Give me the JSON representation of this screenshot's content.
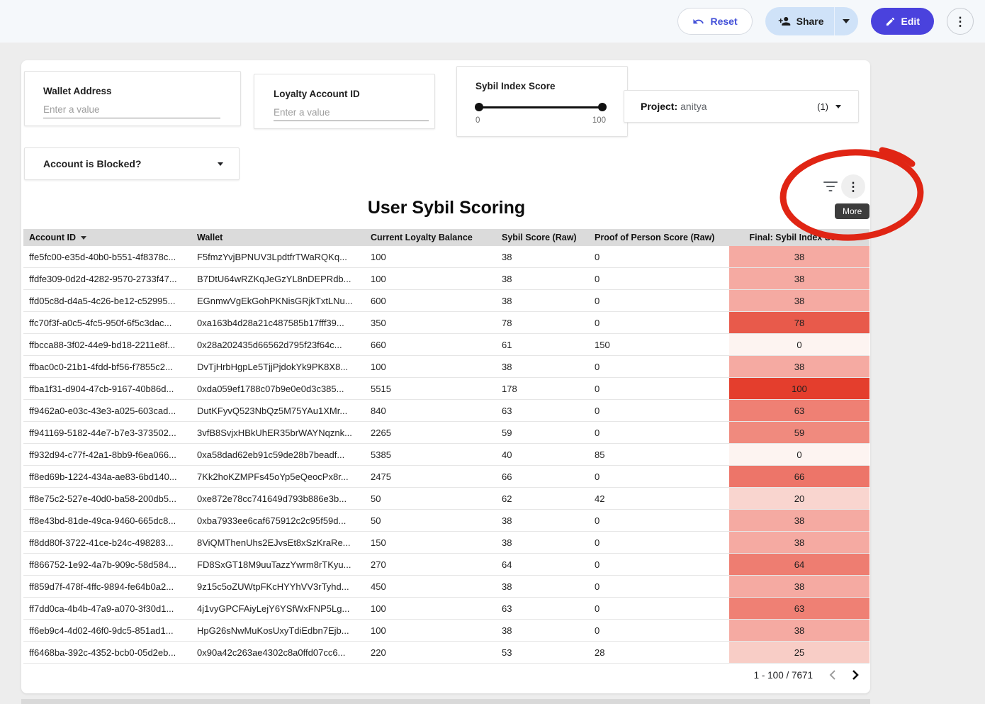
{
  "topbar": {
    "reset_label": "Reset",
    "share_label": "Share",
    "edit_label": "Edit"
  },
  "filters": {
    "wallet": {
      "label": "Wallet Address",
      "placeholder": "Enter a value",
      "value": ""
    },
    "loyalty": {
      "label": "Loyalty Account ID",
      "placeholder": "Enter a value",
      "value": ""
    },
    "sybil_slider": {
      "label": "Sybil Index Score",
      "min_label": "0",
      "max_label": "100",
      "range": [
        0,
        100
      ]
    },
    "project": {
      "label": "Project",
      "value": "anitya",
      "count": "(1)"
    },
    "blocked": {
      "label": "Account is Blocked?"
    }
  },
  "chart_header": {
    "tooltip_more": "More"
  },
  "table": {
    "title": "User Sybil Scoring",
    "columns": [
      "Account ID",
      "Wallet",
      "Current Loyalty Balance",
      "Sybil Score (Raw)",
      "Proof of Person Score (Raw)",
      "Final: Sybil Index Score"
    ],
    "sorted_column": "Account ID",
    "sort_direction": "desc",
    "rows": [
      {
        "account_id": "ffe5fc00-e35d-40b0-b551-4f8378c...",
        "wallet": "F5fmzYvjBPNUV3LpdtfrTWaRQKq...",
        "balance": "100",
        "sybil_raw": "38",
        "pop_raw": "0",
        "final": "38",
        "final_color": "#f5aaa2"
      },
      {
        "account_id": "ffdfe309-0d2d-4282-9570-2733f47...",
        "wallet": "B7DtU64wRZKqJeGzYL8nDEPRdb...",
        "balance": "100",
        "sybil_raw": "38",
        "pop_raw": "0",
        "final": "38",
        "final_color": "#f5aaa2"
      },
      {
        "account_id": "ffd05c8d-d4a5-4c26-be12-c52995...",
        "wallet": "EGnmwVgEkGohPKNisGRjkTxtLNu...",
        "balance": "600",
        "sybil_raw": "38",
        "pop_raw": "0",
        "final": "38",
        "final_color": "#f5aaa2"
      },
      {
        "account_id": "ffc70f3f-a0c5-4fc5-950f-6f5c3dac...",
        "wallet": "0xa163b4d28a21c487585b17fff39...",
        "balance": "350",
        "sybil_raw": "78",
        "pop_raw": "0",
        "final": "78",
        "final_color": "#e85a4b"
      },
      {
        "account_id": "ffbcca88-3f02-44e9-bd18-2211e8f...",
        "wallet": "0x28a202435d66562d795f23f64c...",
        "balance": "660",
        "sybil_raw": "61",
        "pop_raw": "150",
        "final": "0",
        "final_color": "#fdf4f1"
      },
      {
        "account_id": "ffbac0c0-21b1-4fdd-bf56-f7855c2...",
        "wallet": "DvTjHrbHgpLe5TjjPjdokYk9PK8X8...",
        "balance": "100",
        "sybil_raw": "38",
        "pop_raw": "0",
        "final": "38",
        "final_color": "#f5aaa2"
      },
      {
        "account_id": "ffba1f31-d904-47cb-9167-40b86d...",
        "wallet": "0xda059ef1788c07b9e0e0d3c385...",
        "balance": "5515",
        "sybil_raw": "178",
        "pop_raw": "0",
        "final": "100",
        "final_color": "#e43e2d"
      },
      {
        "account_id": "ff9462a0-e03c-43e3-a025-603cad...",
        "wallet": "DutKFyvQ523NbQz5M75YAu1XMr...",
        "balance": "840",
        "sybil_raw": "63",
        "pop_raw": "0",
        "final": "63",
        "final_color": "#ef8074"
      },
      {
        "account_id": "ff941169-5182-44e7-b7e3-373502...",
        "wallet": "3vfB8SvjxHBkUhER35brWAYNqznk...",
        "balance": "2265",
        "sybil_raw": "59",
        "pop_raw": "0",
        "final": "59",
        "final_color": "#f08a7e"
      },
      {
        "account_id": "ff932d94-c77f-42a1-8bb9-f6ea066...",
        "wallet": "0xa58dad62eb91c59de28b7beadf...",
        "balance": "5385",
        "sybil_raw": "40",
        "pop_raw": "85",
        "final": "0",
        "final_color": "#fdf4f1"
      },
      {
        "account_id": "ff8ed69b-1224-434a-ae83-6bd140...",
        "wallet": "7Kk2hoKZMPFs45oYp5eQeocPx8r...",
        "balance": "2475",
        "sybil_raw": "66",
        "pop_raw": "0",
        "final": "66",
        "final_color": "#ed7569"
      },
      {
        "account_id": "ff8e75c2-527e-40d0-ba58-200db5...",
        "wallet": "0xe872e78cc741649d793b886e3b...",
        "balance": "50",
        "sybil_raw": "62",
        "pop_raw": "42",
        "final": "20",
        "final_color": "#f9d5cf"
      },
      {
        "account_id": "ff8e43bd-81de-49ca-9460-665dc8...",
        "wallet": "0xba7933ee6caf675912c2c95f59d...",
        "balance": "50",
        "sybil_raw": "38",
        "pop_raw": "0",
        "final": "38",
        "final_color": "#f5aaa2"
      },
      {
        "account_id": "ff8dd80f-3722-41ce-b24c-498283...",
        "wallet": "8ViQMThenUhs2EJvsEt8xSzKraRe...",
        "balance": "150",
        "sybil_raw": "38",
        "pop_raw": "0",
        "final": "38",
        "final_color": "#f5aaa2"
      },
      {
        "account_id": "ff866752-1e92-4a7b-909c-58d584...",
        "wallet": "FD8SxGT18M9uuTazzYwrm8rTKyu...",
        "balance": "270",
        "sybil_raw": "64",
        "pop_raw": "0",
        "final": "64",
        "final_color": "#ee7d71"
      },
      {
        "account_id": "ff859d7f-478f-4ffc-9894-fe64b0a2...",
        "wallet": "9z15c5oZUWtpFKcHYYhVV3rTyhd...",
        "balance": "450",
        "sybil_raw": "38",
        "pop_raw": "0",
        "final": "38",
        "final_color": "#f5aaa2"
      },
      {
        "account_id": "ff7dd0ca-4b4b-47a9-a070-3f30d1...",
        "wallet": "4j1vyGPCFAiyLejY6YSfWxFNP5Lg...",
        "balance": "100",
        "sybil_raw": "63",
        "pop_raw": "0",
        "final": "63",
        "final_color": "#ef8074"
      },
      {
        "account_id": "ff6eb9c4-4d02-46f0-9dc5-851ad1...",
        "wallet": "HpG26sNwMuKosUxyTdiEdbn7Ejb...",
        "balance": "100",
        "sybil_raw": "38",
        "pop_raw": "0",
        "final": "38",
        "final_color": "#f5aaa2"
      },
      {
        "account_id": "ff6468ba-392c-4352-bcb0-05d2eb...",
        "wallet": "0x90a42c263ae4302c8a0ffd07cc6...",
        "balance": "220",
        "sybil_raw": "53",
        "pop_raw": "28",
        "final": "25",
        "final_color": "#f8cdc6"
      }
    ],
    "pagination": "1 - 100 / 7671"
  },
  "annotation": {
    "shape": "hand-drawn-ellipse",
    "color": "#e02514"
  },
  "colors": {
    "edit_button_bg": "#4a42dd",
    "share_button_bg": "#cfe2f8",
    "reset_text": "#4350d8",
    "heat_scale_low": "#fdf4f1",
    "heat_scale_high": "#e43e2d"
  }
}
